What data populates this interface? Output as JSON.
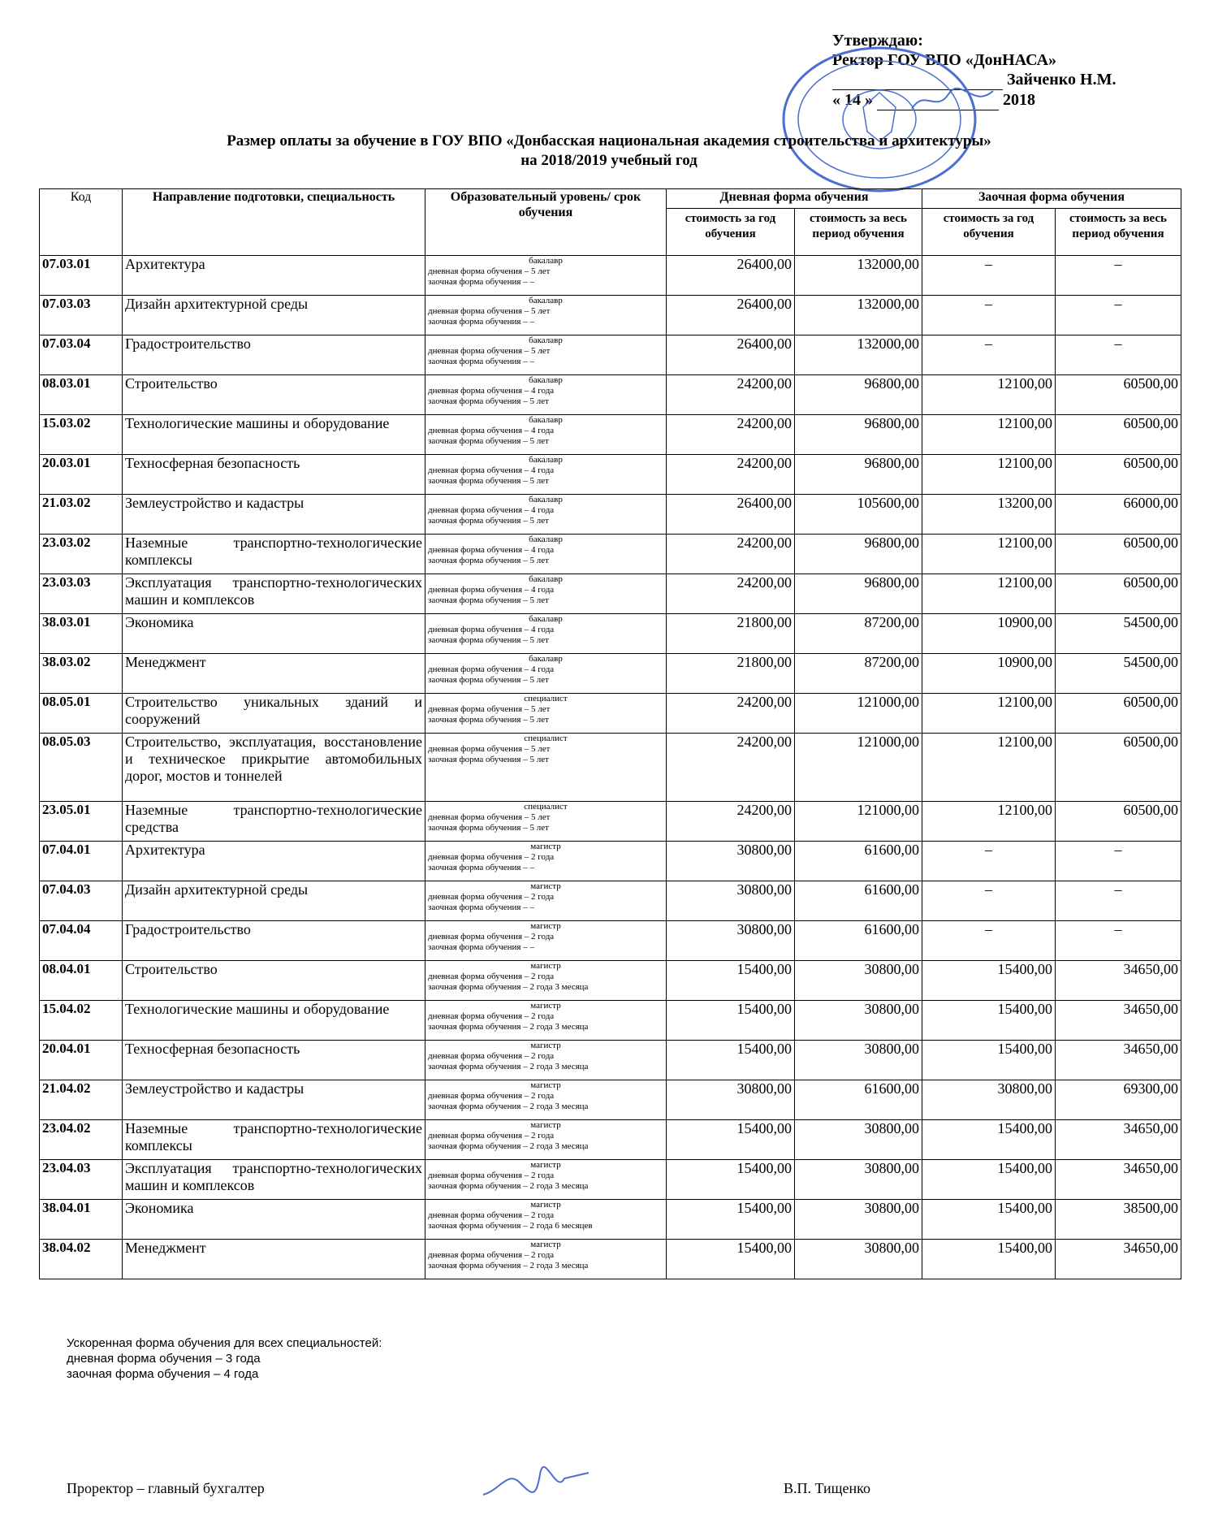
{
  "approval": {
    "line1": "Утверждаю:",
    "line2": "Ректор ГОУ ВПО «ДонНАСА»",
    "name": "Зайченко Н.М.",
    "day": "« 14 »",
    "year": "2018"
  },
  "title": {
    "line1": "Размер оплаты за обучение в ГОУ ВПО «Донбасская национальная академия строительства и архитектуры»",
    "line2": "на 2018/2019 учебный год"
  },
  "headers": {
    "code": "Код",
    "specialty": "Направление подготовки, специальность",
    "level": "Образовательный уровень/ срок обучения",
    "day_form": "Дневная форма обучения",
    "extra_form": "Заочная форма обучения",
    "cost_year": "стоимость за год обучения",
    "cost_period": "стоимость за весь период обучения"
  },
  "rows": [
    {
      "code": "07.03.01",
      "name": "Архитектура",
      "degree": "бакалавр",
      "day": "дневная форма обучения – 5 лет",
      "ext": "заочная форма обучения – –",
      "dy": "26400,00",
      "dp": "132000,00",
      "ey": "–",
      "ep": "–"
    },
    {
      "code": "07.03.03",
      "name": "Дизайн архитектурной среды",
      "degree": "бакалавр",
      "day": "дневная форма обучения – 5 лет",
      "ext": "заочная форма обучения – –",
      "dy": "26400,00",
      "dp": "132000,00",
      "ey": "–",
      "ep": "–"
    },
    {
      "code": "07.03.04",
      "name": "Градостроительство",
      "degree": "бакалавр",
      "day": "дневная форма обучения – 5 лет",
      "ext": "заочная форма обучения – –",
      "dy": "26400,00",
      "dp": "132000,00",
      "ey": "–",
      "ep": "–"
    },
    {
      "code": "08.03.01",
      "name": "Строительство",
      "degree": "бакалавр",
      "day": "дневная форма обучения – 4 года",
      "ext": "заочная форма обучения – 5 лет",
      "dy": "24200,00",
      "dp": "96800,00",
      "ey": "12100,00",
      "ep": "60500,00"
    },
    {
      "code": "15.03.02",
      "name": "Технологические машины и оборудование",
      "degree": "бакалавр",
      "day": "дневная форма обучения – 4 года",
      "ext": "заочная форма обучения – 5 лет",
      "dy": "24200,00",
      "dp": "96800,00",
      "ey": "12100,00",
      "ep": "60500,00"
    },
    {
      "code": "20.03.01",
      "name": "Техносферная безопасность",
      "degree": "бакалавр",
      "day": "дневная форма обучения – 4 года",
      "ext": "заочная форма обучения – 5 лет",
      "dy": "24200,00",
      "dp": "96800,00",
      "ey": "12100,00",
      "ep": "60500,00"
    },
    {
      "code": "21.03.02",
      "name": "Землеустройство и кадастры",
      "degree": "бакалавр",
      "day": "дневная форма обучения – 4 года",
      "ext": "заочная форма обучения – 5 лет",
      "dy": "26400,00",
      "dp": "105600,00",
      "ey": "13200,00",
      "ep": "66000,00"
    },
    {
      "code": "23.03.02",
      "name": "Наземные транспортно-технологические комплексы",
      "degree": "бакалавр",
      "day": "дневная форма обучения – 4 года",
      "ext": "заочная форма обучения – 5 лет",
      "dy": "24200,00",
      "dp": "96800,00",
      "ey": "12100,00",
      "ep": "60500,00"
    },
    {
      "code": "23.03.03",
      "name": "Эксплуатация транспортно-технологических машин и комплексов",
      "degree": "бакалавр",
      "day": "дневная форма обучения – 4 года",
      "ext": "заочная форма обучения – 5 лет",
      "dy": "24200,00",
      "dp": "96800,00",
      "ey": "12100,00",
      "ep": "60500,00"
    },
    {
      "code": "38.03.01",
      "name": "Экономика",
      "degree": "бакалавр",
      "day": "дневная форма обучения – 4 года",
      "ext": "заочная форма обучения – 5 лет",
      "dy": "21800,00",
      "dp": "87200,00",
      "ey": "10900,00",
      "ep": "54500,00"
    },
    {
      "code": "38.03.02",
      "name": "Менеджмент",
      "degree": "бакалавр",
      "day": "дневная форма обучения – 4 года",
      "ext": "заочная форма обучения – 5 лет",
      "dy": "21800,00",
      "dp": "87200,00",
      "ey": "10900,00",
      "ep": "54500,00"
    },
    {
      "code": "08.05.01",
      "name": "Строительство уникальных зданий и сооружений",
      "degree": "специалист",
      "day": "дневная форма обучения – 5 лет",
      "ext": "заочная форма обучения – 5 лет",
      "dy": "24200,00",
      "dp": "121000,00",
      "ey": "12100,00",
      "ep": "60500,00"
    },
    {
      "code": "08.05.03",
      "name": "Строительство, эксплуатация, восстановление и техническое прикрытие автомобильных дорог, мостов и тоннелей",
      "degree": "специалист",
      "day": "дневная форма обучения – 5 лет",
      "ext": "заочная форма обучения – 5 лет",
      "dy": "24200,00",
      "dp": "121000,00",
      "ey": "12100,00",
      "ep": "60500,00"
    },
    {
      "code": "23.05.01",
      "name": "Наземные транспортно-технологические средства",
      "degree": "специалист",
      "day": "дневная форма обучения – 5 лет",
      "ext": "заочная форма обучения – 5 лет",
      "dy": "24200,00",
      "dp": "121000,00",
      "ey": "12100,00",
      "ep": "60500,00"
    },
    {
      "code": "07.04.01",
      "name": "Архитектура",
      "degree": "магистр",
      "day": "дневная форма обучения – 2 года",
      "ext": "заочная форма обучения – –",
      "dy": "30800,00",
      "dp": "61600,00",
      "ey": "–",
      "ep": "–"
    },
    {
      "code": "07.04.03",
      "name": "Дизайн архитектурной среды",
      "degree": "магистр",
      "day": "дневная форма обучения – 2 года",
      "ext": "заочная форма обучения – –",
      "dy": "30800,00",
      "dp": "61600,00",
      "ey": "–",
      "ep": "–"
    },
    {
      "code": "07.04.04",
      "name": "Градостроительство",
      "degree": "магистр",
      "day": "дневная форма обучения – 2 года",
      "ext": "заочная форма обучения – –",
      "dy": "30800,00",
      "dp": "61600,00",
      "ey": "–",
      "ep": "–"
    },
    {
      "code": "08.04.01",
      "name": "Строительство",
      "degree": "магистр",
      "day": "дневная форма обучения – 2 года",
      "ext": "заочная форма обучения – 2 года 3 месяца",
      "dy": "15400,00",
      "dp": "30800,00",
      "ey": "15400,00",
      "ep": "34650,00"
    },
    {
      "code": "15.04.02",
      "name": "Технологические машины и оборудование",
      "degree": "магистр",
      "day": "дневная форма обучения – 2 года",
      "ext": "заочная форма обучения – 2 года 3 месяца",
      "dy": "15400,00",
      "dp": "30800,00",
      "ey": "15400,00",
      "ep": "34650,00"
    },
    {
      "code": "20.04.01",
      "name": "Техносферная безопасность",
      "degree": "магистр",
      "day": "дневная форма обучения – 2 года",
      "ext": "заочная форма обучения – 2 года 3 месяца",
      "dy": "15400,00",
      "dp": "30800,00",
      "ey": "15400,00",
      "ep": "34650,00"
    },
    {
      "code": "21.04.02",
      "name": "Землеустройство и кадастры",
      "degree": "магистр",
      "day": "дневная форма обучения – 2 года",
      "ext": "заочная форма обучения – 2 года 3 месяца",
      "dy": "30800,00",
      "dp": "61600,00",
      "ey": "30800,00",
      "ep": "69300,00"
    },
    {
      "code": "23.04.02",
      "name": "Наземные транспортно-технологические комплексы",
      "degree": "магистр",
      "day": "дневная форма обучения – 2 года",
      "ext": "заочная форма обучения – 2 года 3 месяца",
      "dy": "15400,00",
      "dp": "30800,00",
      "ey": "15400,00",
      "ep": "34650,00"
    },
    {
      "code": "23.04.03",
      "name": "Эксплуатация транспортно-технологических машин и комплексов",
      "degree": "магистр",
      "day": "дневная форма обучения – 2 года",
      "ext": "заочная форма обучения – 2 года 3 месяца",
      "dy": "15400,00",
      "dp": "30800,00",
      "ey": "15400,00",
      "ep": "34650,00"
    },
    {
      "code": "38.04.01",
      "name": "Экономика",
      "degree": "магистр",
      "day": "дневная форма обучения – 2 года",
      "ext": "заочная форма обучения – 2 года 6 месяцев",
      "dy": "15400,00",
      "dp": "30800,00",
      "ey": "15400,00",
      "ep": "38500,00"
    },
    {
      "code": "38.04.02",
      "name": "Менеджмент",
      "degree": "магистр",
      "day": "дневная форма обучения – 2 года",
      "ext": "заочная форма обучения – 2 года 3 месяца",
      "dy": "15400,00",
      "dp": "30800,00",
      "ey": "15400,00",
      "ep": "34650,00"
    }
  ],
  "notes": {
    "line1": "Ускоренная форма обучения для всех специальностей:",
    "line2": "дневная форма обучения – 3 года",
    "line3": "заочная форма обучения – 4 года"
  },
  "footer": {
    "position": "Проректор – главный бухгалтер",
    "name": "В.П. Тищенко"
  },
  "colors": {
    "seal": "#4a6fd0",
    "ink": "#000000"
  }
}
